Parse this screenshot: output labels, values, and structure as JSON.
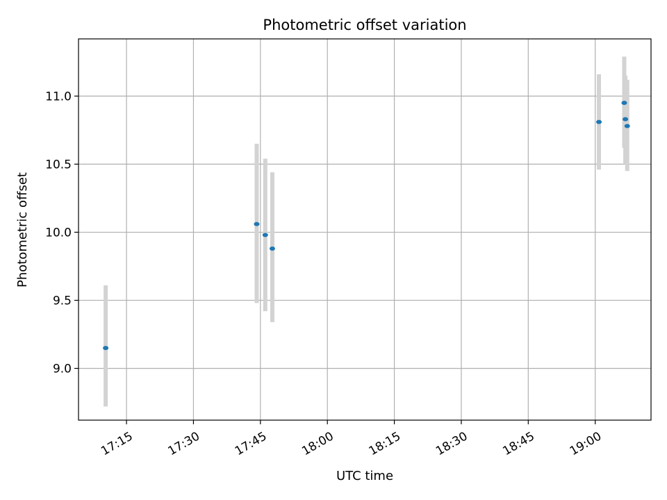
{
  "chart_data": {
    "type": "scatter",
    "title": "Photometric offset variation",
    "xlabel": "UTC time",
    "ylabel": "Photometric offset",
    "x_type": "time",
    "xlim": [
      "17:04:15",
      "19:12:30"
    ],
    "ylim": [
      8.62,
      11.42
    ],
    "x_ticks": [
      "17:15",
      "17:30",
      "17:45",
      "18:00",
      "18:15",
      "18:30",
      "18:45",
      "19:00"
    ],
    "y_ticks": [
      9.0,
      9.5,
      10.0,
      10.5,
      11.0
    ],
    "grid": true,
    "colors": {
      "point": "#1f77b4",
      "errorbar": "#d3d3d3",
      "grid": "#b0b0b0",
      "frame": "#000000"
    },
    "points": [
      {
        "x": "17:10:20",
        "y": 9.15,
        "yerr_low": 8.72,
        "yerr_high": 9.61
      },
      {
        "x": "17:44:10",
        "y": 10.06,
        "yerr_low": 9.48,
        "yerr_high": 10.65
      },
      {
        "x": "17:46:05",
        "y": 9.98,
        "yerr_low": 9.42,
        "yerr_high": 10.54
      },
      {
        "x": "17:47:40",
        "y": 9.88,
        "yerr_low": 9.34,
        "yerr_high": 10.44
      },
      {
        "x": "19:00:50",
        "y": 10.81,
        "yerr_low": 10.46,
        "yerr_high": 11.16
      },
      {
        "x": "19:06:30",
        "y": 10.95,
        "yerr_low": 10.62,
        "yerr_high": 11.29
      },
      {
        "x": "19:06:45",
        "y": 10.83,
        "yerr_low": 10.5,
        "yerr_high": 11.15
      },
      {
        "x": "19:07:10",
        "y": 10.78,
        "yerr_low": 10.45,
        "yerr_high": 11.12
      }
    ]
  }
}
